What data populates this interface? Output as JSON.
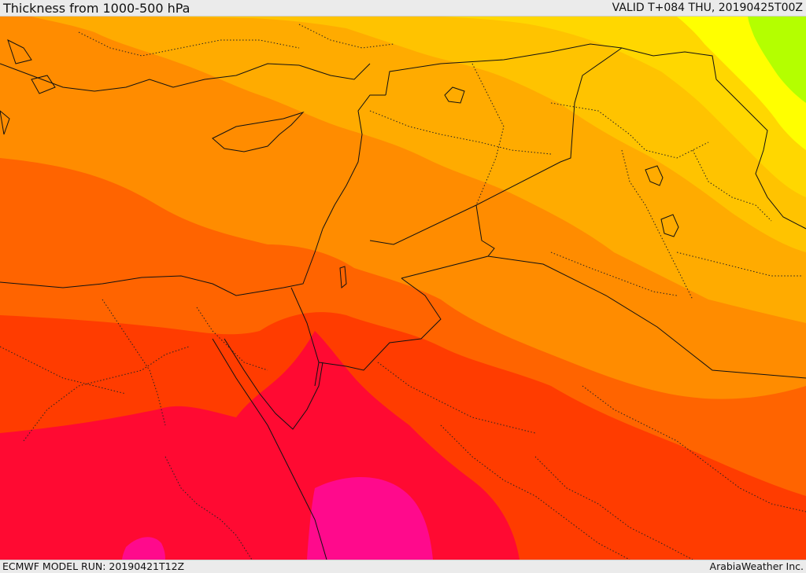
{
  "header": {
    "title": "Thickness from 1000-500 hPa",
    "valid": "VALID T+084 THU, 20190425T00Z"
  },
  "footer": {
    "model_run": "ECMWF MODEL RUN: 20190421T12Z",
    "credit": "ArabiaWeather Inc."
  },
  "map": {
    "field": "1000-500 hPa thickness",
    "colors": {
      "green": "#b4ff00",
      "yellow": "#ffff00",
      "yellow_gold": "#ffd700",
      "gold": "#ffc300",
      "orange_light": "#ffab00",
      "orange": "#ff8c00",
      "orange_dark": "#ff6400",
      "red_orange": "#ff3c00",
      "red": "#ff0a32",
      "magenta": "#ff0a8c",
      "border_line": "#111111"
    }
  }
}
